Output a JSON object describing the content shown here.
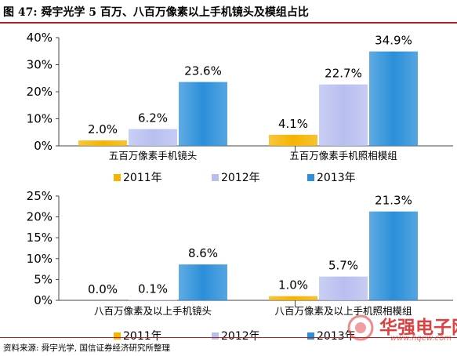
{
  "header": {
    "title": "图 47: 舜宇光学 5 百万、八百万像素以上手机镜头及模组占比"
  },
  "footer": {
    "source": "资料来源: 舜宇光学, 国信证券经济研究所整理"
  },
  "watermark": {
    "text": "华强电子网",
    "url": "www.hqew.com"
  },
  "colors": {
    "series_2011": "#f5b400",
    "series_2012": "#b8bff0",
    "series_2013": "#2b8fd9",
    "accent": "#b22222"
  },
  "chart_data": [
    {
      "type": "bar",
      "categories": [
        "五百万像素手机镜头",
        "五百万像素手机照相模组"
      ],
      "series": [
        {
          "name": "2011年",
          "values": [
            2.0,
            4.1
          ]
        },
        {
          "name": "2012年",
          "values": [
            6.2,
            22.7
          ]
        },
        {
          "name": "2013年",
          "values": [
            23.6,
            34.9
          ]
        }
      ],
      "data_labels": [
        [
          "2.0%",
          "6.2%",
          "23.6%"
        ],
        [
          "4.1%",
          "22.7%",
          "34.9%"
        ]
      ],
      "yticks": [
        "0%",
        "10%",
        "20%",
        "30%",
        "40%"
      ],
      "ylim": [
        0,
        40
      ],
      "legend": "bottom",
      "grid": false
    },
    {
      "type": "bar",
      "categories": [
        "八百万像素及以上手机镜头",
        "八百万像素及以上手机照相模组"
      ],
      "series": [
        {
          "name": "2011年",
          "values": [
            0.0,
            1.0
          ]
        },
        {
          "name": "2012年",
          "values": [
            0.1,
            5.7
          ]
        },
        {
          "name": "2013年",
          "values": [
            8.6,
            21.3
          ]
        }
      ],
      "data_labels": [
        [
          "0.0%",
          "0.1%",
          "8.6%"
        ],
        [
          "1.0%",
          "5.7%",
          "21.3%"
        ]
      ],
      "yticks": [
        "0%",
        "5%",
        "10%",
        "15%",
        "20%",
        "25%"
      ],
      "ylim": [
        0,
        25
      ],
      "legend": "bottom",
      "grid": false
    }
  ]
}
